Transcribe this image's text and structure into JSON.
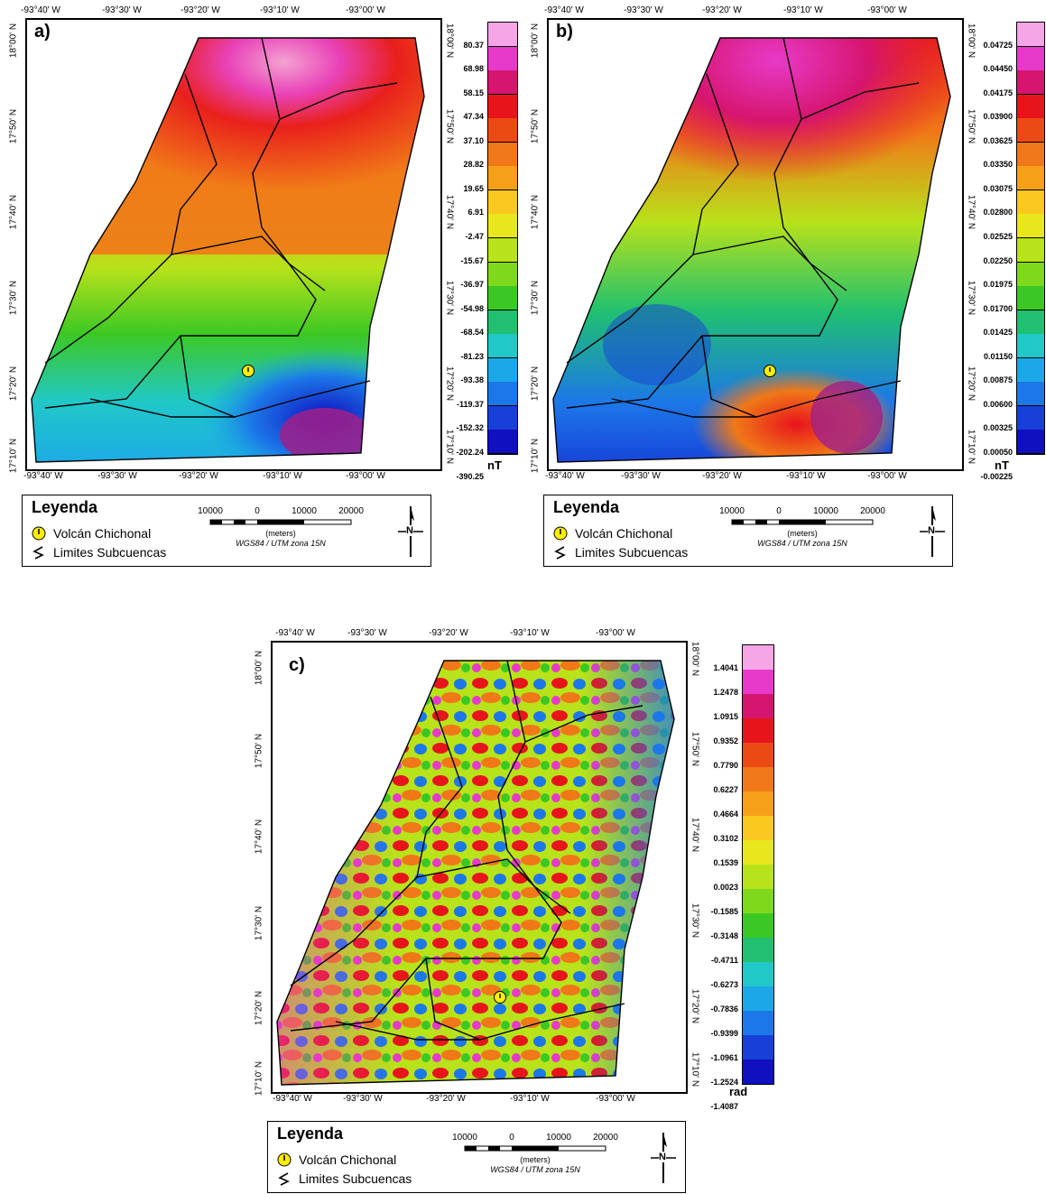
{
  "panels": [
    {
      "letter": "a)",
      "top_ticks": [
        "-93°40' W",
        "-93°30' W",
        "-93°20' W",
        "-93°10' W",
        "-93°00' W"
      ],
      "bottom_ticks": [
        "-93°40' W",
        "-93°30' W",
        "-93°20' W",
        "-93°10' W",
        "-93°00' W"
      ],
      "left_ticks": [
        "18°00' N",
        "17°50' N",
        "17°40' N",
        "17°30' N",
        "17°20' N",
        "17°10' N"
      ],
      "right_ticks": [
        "18°00' N",
        "17°50' N",
        "17°40' N",
        "17°30' N",
        "17°20' N",
        "17°10' N"
      ],
      "colorbar_labels": [
        "80.37",
        "68.98",
        "58.15",
        "47.34",
        "37.10",
        "28.82",
        "19.65",
        "6.91",
        "-2.47",
        "-15.67",
        "-36.97",
        "-54.98",
        "-68.54",
        "-81.23",
        "-93.38",
        "-119.37",
        "-152.32",
        "-202.24",
        "-390.25"
      ],
      "unit": "nT"
    },
    {
      "letter": "b)",
      "top_ticks": [
        "-93°40' W",
        "-93°30' W",
        "-93°20' W",
        "-93°10' W",
        "-93°00' W"
      ],
      "bottom_ticks": [
        "-93°40' W",
        "-93°30' W",
        "-93°20' W",
        "-93°10' W",
        "-93°00' W"
      ],
      "left_ticks": [
        "18°00' N",
        "17°50' N",
        "17°40' N",
        "17°30' N",
        "17°20' N",
        "17°10' N"
      ],
      "right_ticks": [
        "18°00' N",
        "17°50' N",
        "17°40' N",
        "17°30' N",
        "17°20' N",
        "17°10' N"
      ],
      "colorbar_labels": [
        "0.04725",
        "0.04450",
        "0.04175",
        "0.03900",
        "0.03625",
        "0.03350",
        "0.03075",
        "0.02800",
        "0.02525",
        "0.02250",
        "0.01975",
        "0.01700",
        "0.01425",
        "0.01150",
        "0.00875",
        "0.00600",
        "0.00325",
        "0.00050",
        "-0.00225"
      ],
      "unit": "nT"
    },
    {
      "letter": "c)",
      "top_ticks": [
        "-93°40' W",
        "-93°30' W",
        "-93°20' W",
        "-93°10' W",
        "-93°00' W"
      ],
      "bottom_ticks": [
        "-93°40' W",
        "-93°30' W",
        "-93°20' W",
        "-93°10' W",
        "-93°00' W"
      ],
      "left_ticks": [
        "18°00' N",
        "17°50' N",
        "17°40' N",
        "17°30' N",
        "17°20' N",
        "17°10' N"
      ],
      "right_ticks": [
        "18°00' N",
        "17°50' N",
        "17°40' N",
        "17°30' N",
        "17°20' N",
        "17°10' N"
      ],
      "colorbar_labels": [
        "1.4041",
        "1.2478",
        "1.0915",
        "0.9352",
        "0.7790",
        "0.6227",
        "0.4664",
        "0.3102",
        "0.1539",
        "0.0023",
        "-0.1585",
        "-0.3148",
        "-0.4711",
        "-0.6273",
        "-0.7836",
        "-0.9399",
        "-1.0961",
        "-1.2524",
        "-1.4087"
      ],
      "unit": "rad"
    }
  ],
  "legend": {
    "title": "Leyenda",
    "volcano_label": "Volcán Chichonal",
    "basins_label": "Limites Subcuencas",
    "scale_numbers": [
      "10000",
      "0",
      "10000",
      "20000"
    ],
    "scale_units": "(meters)",
    "projection": "WGS84 / UTM zona 15N",
    "north_letter": "N"
  },
  "colors": {
    "ramp": [
      "#f4a6e6",
      "#e83ac8",
      "#d6156e",
      "#e8141c",
      "#ec4a14",
      "#f07818",
      "#f6a01a",
      "#fac81e",
      "#e8e61c",
      "#b8e21a",
      "#80d81c",
      "#3cc824",
      "#20c070",
      "#20c8c8",
      "#1ca8e8",
      "#1c78e8",
      "#1840d8",
      "#1010c0"
    ],
    "volcano_marker": "#ffee00",
    "outline": "#000000"
  }
}
